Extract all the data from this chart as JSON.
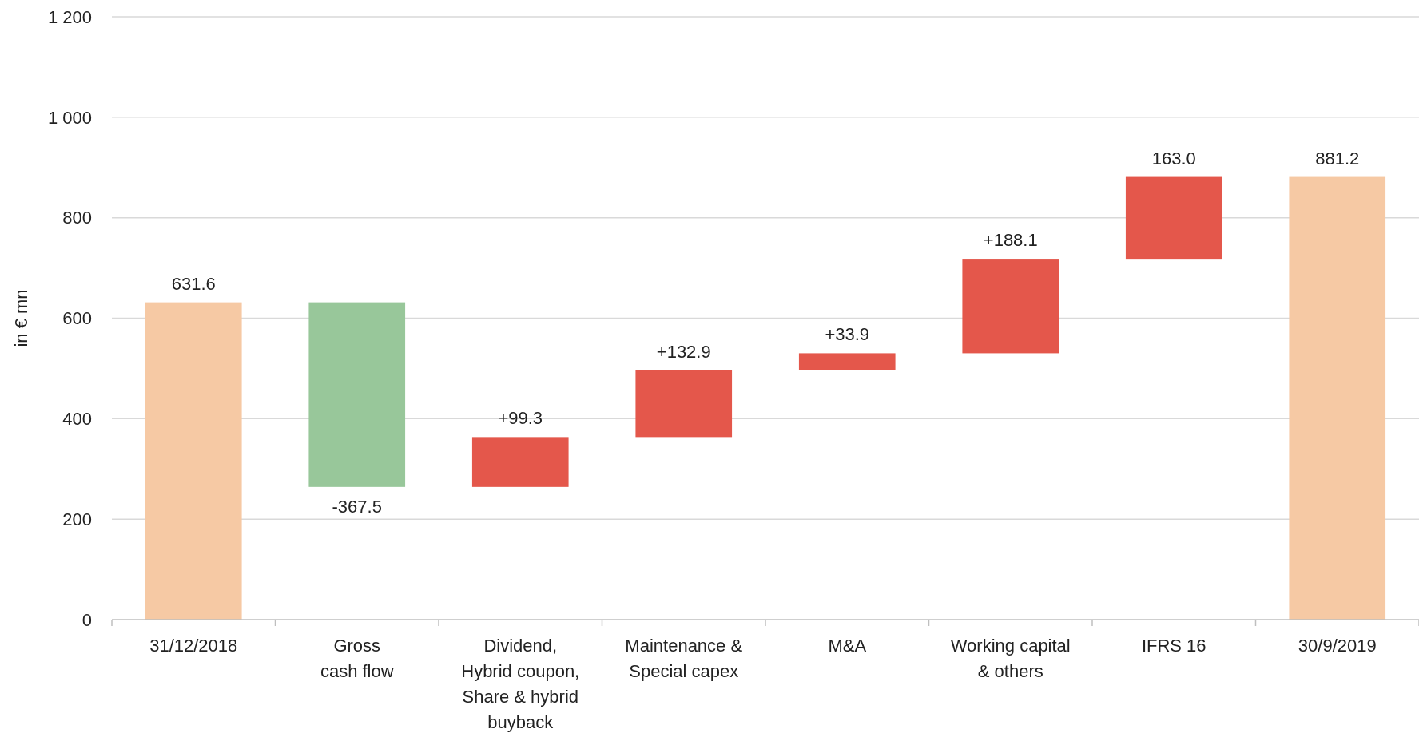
{
  "chart_data": {
    "type": "bar",
    "ylabel": "in € mn",
    "categories": [
      "31/12/2018",
      "Gross\ncash flow",
      "Dividend,\nHybrid coupon,\nShare & hybrid\nbuyback",
      "Maintenance &\nSpecial capex",
      "M&A",
      "Working capital\n& others",
      "IFRS 16",
      "30/9/2019"
    ],
    "values": [
      631.6,
      -367.5,
      99.3,
      132.9,
      33.9,
      188.1,
      163.0,
      881.2
    ],
    "base": [
      0,
      631.6,
      264.1,
      363.4,
      496.3,
      530.2,
      718.2,
      0
    ],
    "colors": [
      "#f6c9a4",
      "#98c79a",
      "#e4574b",
      "#e4574b",
      "#e4574b",
      "#e4574b",
      "#e4574b",
      "#f6c9a4"
    ],
    "value_labels": [
      "631.6",
      "-367.5",
      "+99.3",
      "+132.9",
      "+33.9",
      "+188.1",
      "163.0",
      "881.2"
    ],
    "ylim": [
      0,
      1200
    ],
    "yticks": [
      0,
      200,
      400,
      600,
      800,
      {
        "value": 1000,
        "label": "1 000"
      },
      {
        "value": 1200,
        "label": "1 200"
      }
    ],
    "grid": "y"
  }
}
